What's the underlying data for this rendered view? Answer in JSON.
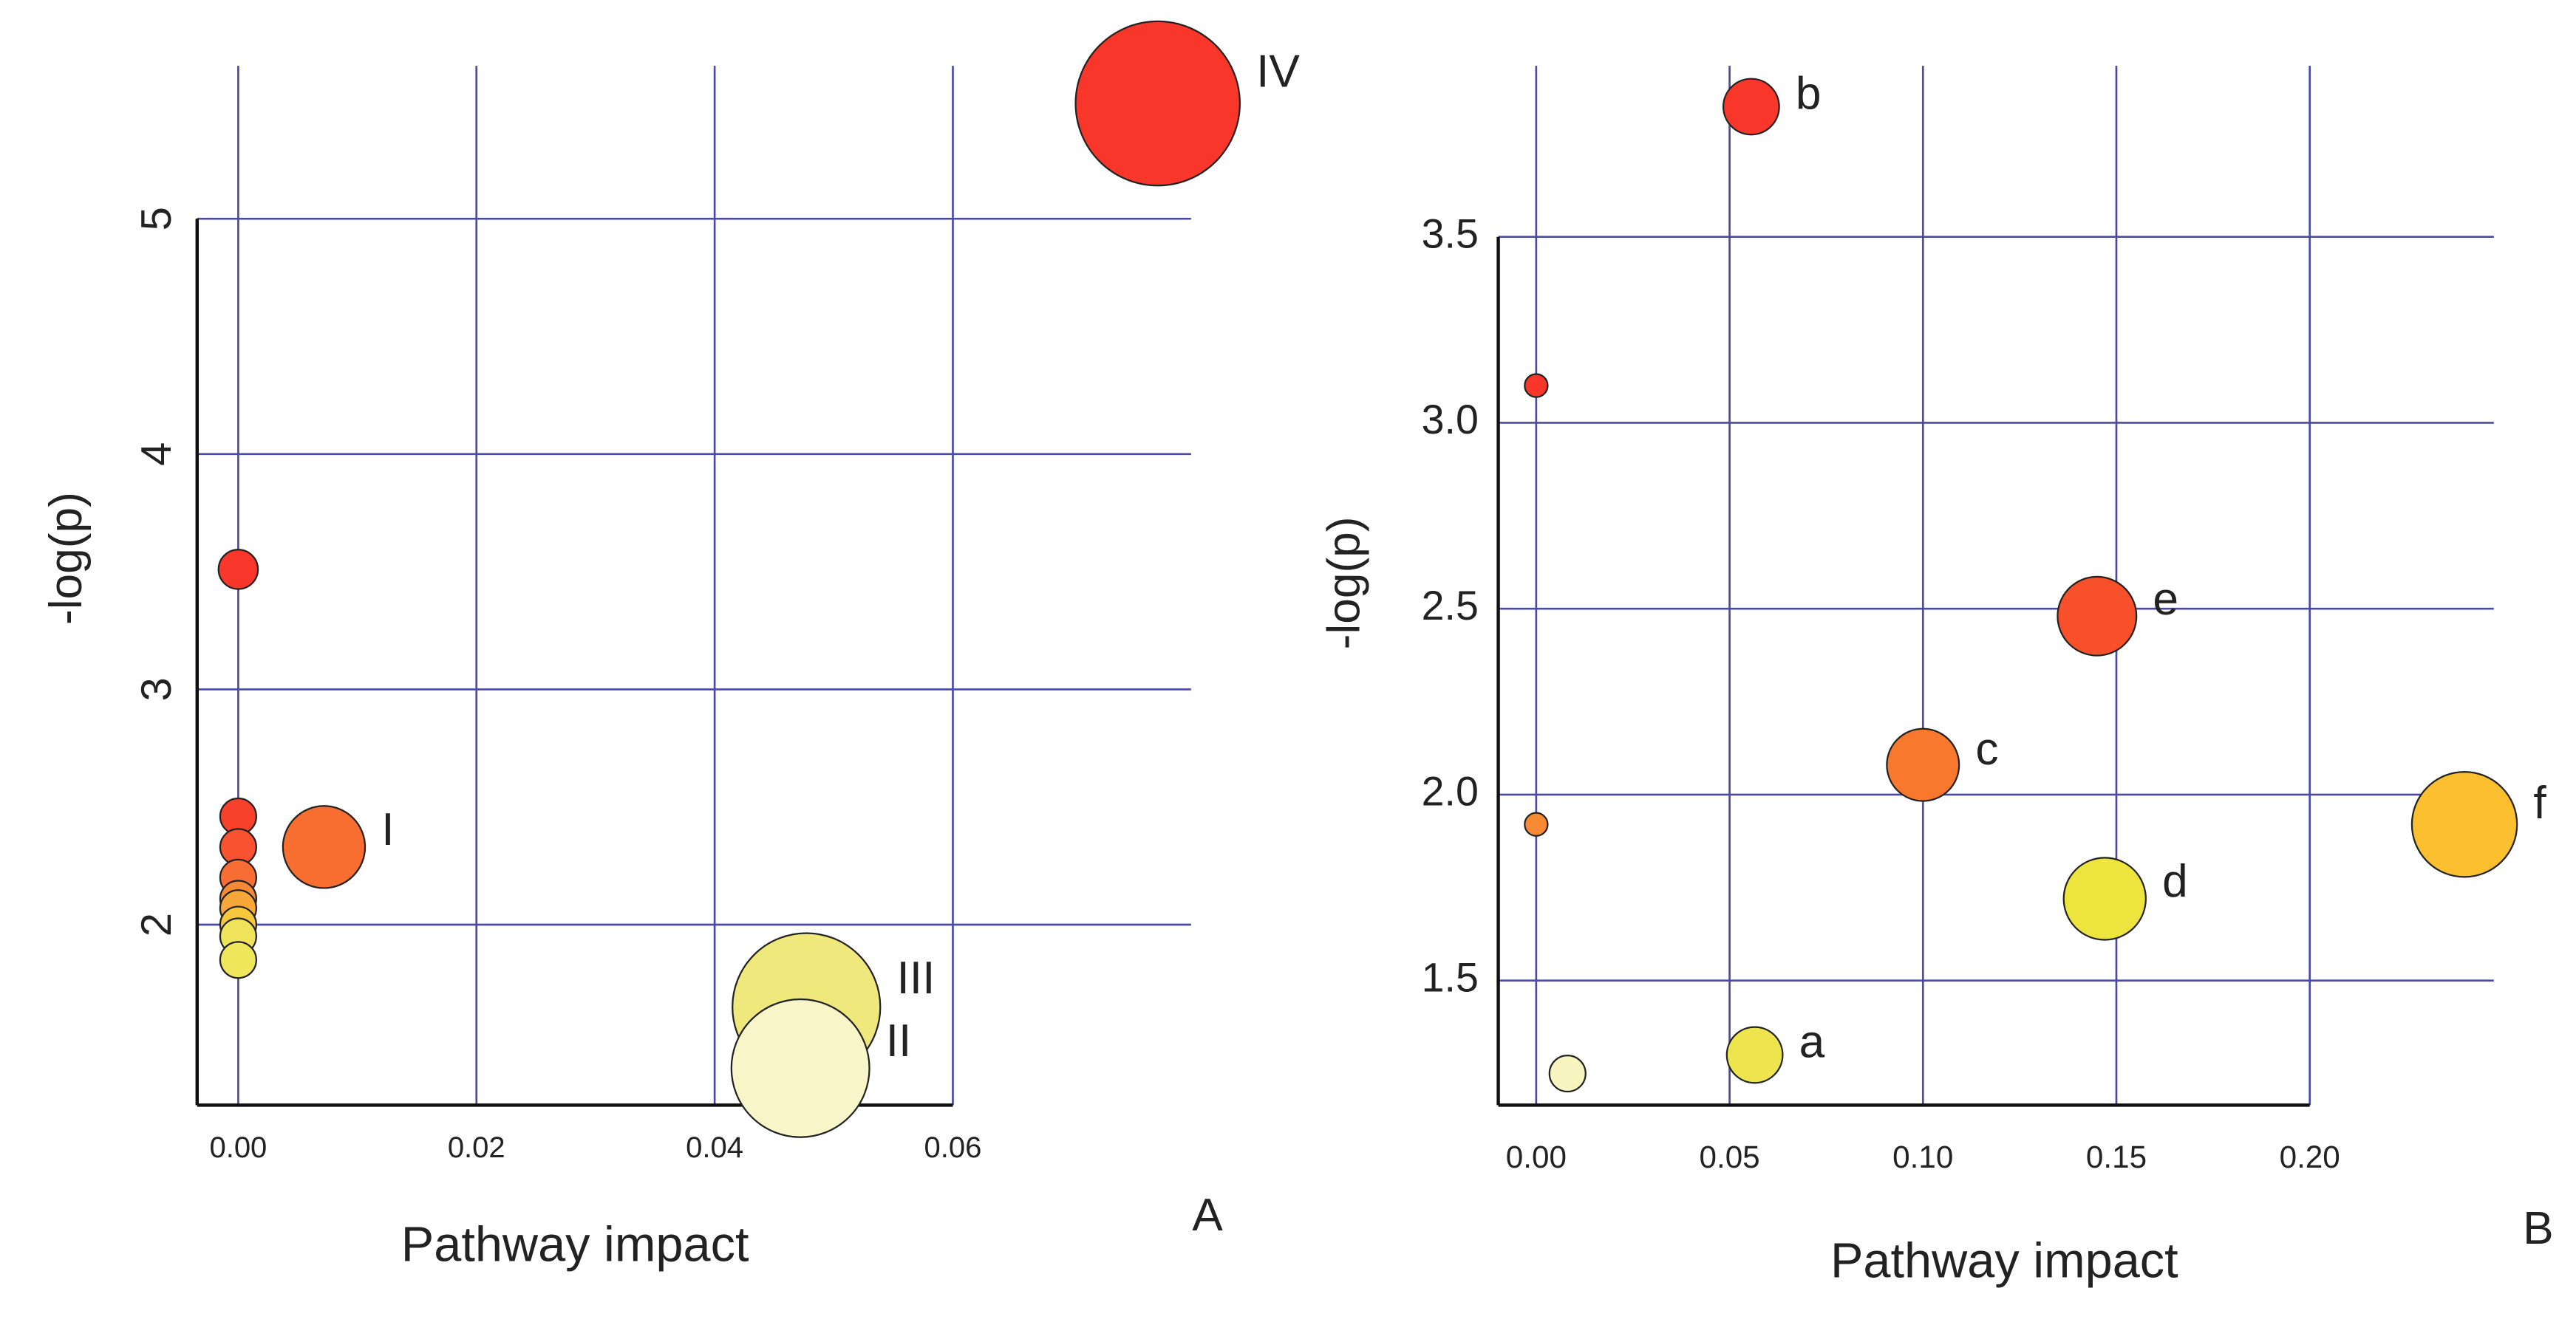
{
  "chart_data": [
    {
      "type": "scatter",
      "xlabel": "Pathway impact",
      "ylabel": "-log(p)",
      "panel": "A",
      "x": [
        0.0772,
        0.0,
        0.0,
        0.0,
        0.0,
        0.0,
        0.0,
        0.0,
        0.0,
        0.0,
        0.0072,
        0.0477,
        0.0472
      ],
      "values": [
        5.49,
        3.51,
        2.46,
        2.33,
        2.2,
        2.11,
        2.07,
        2.0,
        1.95,
        1.85,
        2.33,
        1.65,
        1.39
      ],
      "sizes": [
        50,
        12,
        11,
        11,
        11,
        11,
        11,
        11,
        11,
        11,
        25,
        45,
        42
      ],
      "colors": [
        "#f8362a",
        "#f8362a",
        "#f8412b",
        "#f85230",
        "#f86d34",
        "#f88a37",
        "#f8a838",
        "#f8c83c",
        "#eee35a",
        "#efe65c",
        "#f86d30",
        "#efe87c",
        "#f8f6c9"
      ],
      "annotations": [
        {
          "text": "IV",
          "point": 0
        },
        {
          "text": "I",
          "point": 10
        },
        {
          "text": "III",
          "point": 11
        },
        {
          "text": "II",
          "point": 12
        }
      ],
      "xlim": [
        -0.00345,
        0.08
      ],
      "ylim": [
        1.233,
        5.65
      ],
      "xticks": [
        {
          "value": 0,
          "label": "0.00"
        },
        {
          "value": 0.02,
          "label": "0.02"
        },
        {
          "value": 0.04,
          "label": "0.04"
        },
        {
          "value": 0.06,
          "label": "0.06"
        }
      ],
      "yticks": [
        2,
        3,
        4,
        5
      ],
      "grid": true
    },
    {
      "type": "scatter",
      "xlabel": "Pathway impact",
      "ylabel": "-log(p)",
      "panel": "B",
      "x": [
        0.0556,
        0.0,
        0.145,
        0.1,
        0.0,
        0.24,
        0.147,
        0.0565,
        0.0081
      ],
      "values": [
        3.85,
        3.1,
        2.48,
        2.08,
        1.92,
        1.92,
        1.72,
        1.3,
        1.25
      ],
      "sizes": [
        17,
        7,
        24,
        22,
        7,
        32,
        25,
        17,
        11
      ],
      "colors": [
        "#f8362a",
        "#f8362a",
        "#f8502a",
        "#f8792e",
        "#f88a34",
        "#fbbf30",
        "#eee43e",
        "#eee54e",
        "#f8f4c0"
      ],
      "annotations": [
        {
          "text": "b",
          "point": 0
        },
        {
          "text": "e",
          "point": 2
        },
        {
          "text": "c",
          "point": 3
        },
        {
          "text": "f",
          "point": 5
        },
        {
          "text": "d",
          "point": 6
        },
        {
          "text": "a",
          "point": 7
        }
      ],
      "xlim": [
        -0.0098,
        0.2476
      ],
      "ylim": [
        1.165,
        3.96
      ],
      "xticks": [
        {
          "value": 0,
          "label": "0.00"
        },
        {
          "value": 0.05,
          "label": "0.05"
        },
        {
          "value": 0.1,
          "label": "0.10"
        },
        {
          "value": 0.15,
          "label": "0.15"
        },
        {
          "value": 0.2,
          "label": "0.20"
        }
      ],
      "yticks": [
        1.5,
        {
          "value": 2,
          "label": "2.0"
        },
        2.5,
        {
          "value": 3,
          "label": "3.0"
        },
        3.5
      ],
      "grid": true
    }
  ]
}
